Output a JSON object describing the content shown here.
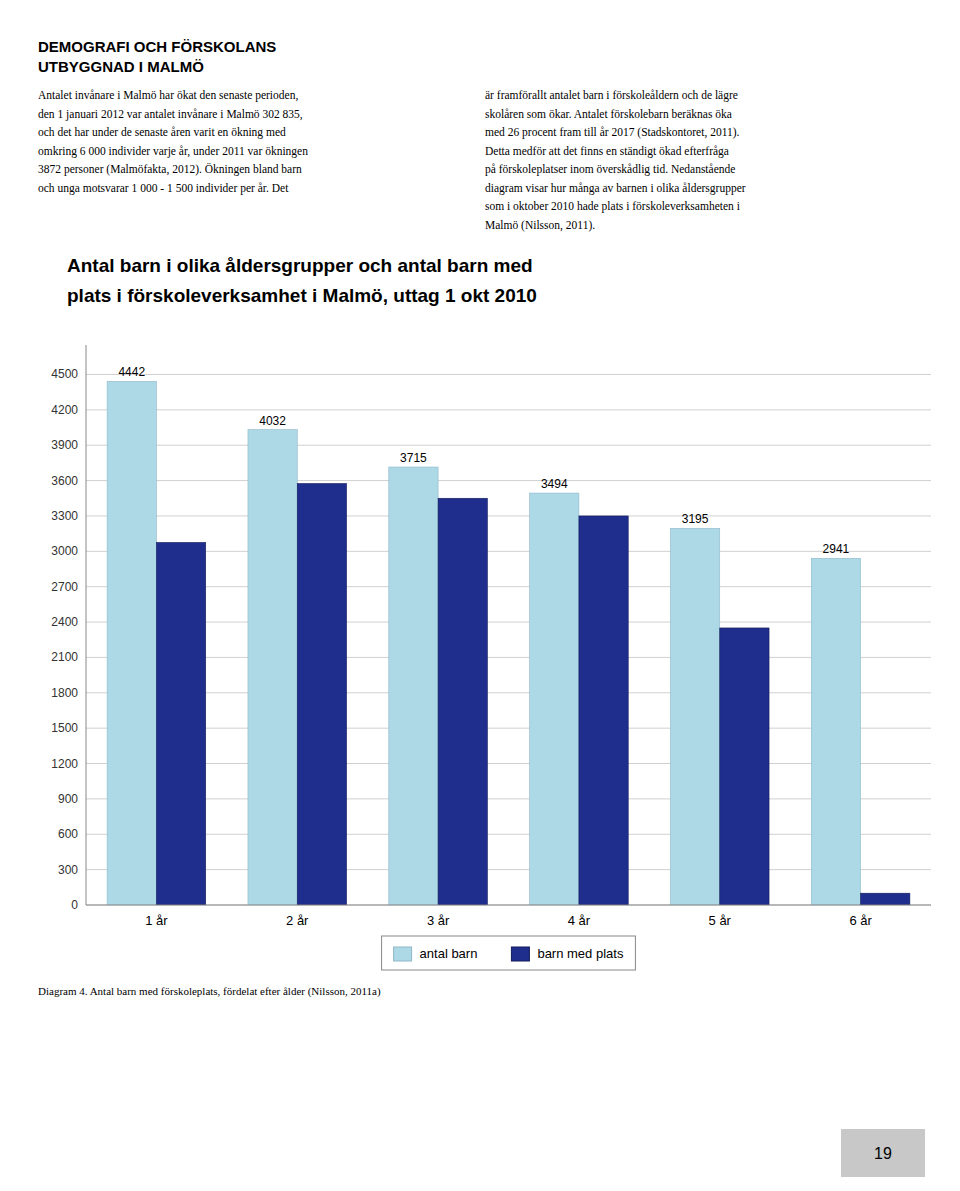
{
  "chart_data": {
    "type": "bar",
    "title": [
      "Antal barn i olika åldersgrupper och antal barn med",
      "plats i förskoleverksamhet i Malmö, uttag 1 okt 2010"
    ],
    "categories": [
      "1 år",
      "2 år",
      "3 år",
      "4 år",
      "5 år",
      "6 år"
    ],
    "series": [
      {
        "name": "antal barn",
        "color": "#ADD8E6",
        "values": [
          4442,
          4032,
          3715,
          3494,
          3195,
          2941
        ],
        "data_labels": true
      },
      {
        "name": "barn med plats",
        "color": "#1F2D8C",
        "values": [
          3075,
          3575,
          3450,
          3300,
          2350,
          100
        ]
      }
    ],
    "ylim": [
      0,
      4750
    ],
    "yticks": [
      0,
      300,
      600,
      900,
      1200,
      1500,
      1800,
      2100,
      2400,
      2700,
      3000,
      3300,
      3600,
      3900,
      4200,
      4500
    ],
    "grid": true,
    "legend": "bottom"
  },
  "page": {
    "header_title": [
      "DEMOGRAFI OCH FÖRSKOLANS",
      "UTBYGGNAD I MALMÖ"
    ],
    "left_column": [
      "Antalet invånare i Malmö har ökat den senaste perioden,",
      "den 1 januari 2012 var antalet invånare i Malmö 302 835,",
      "och det har under de senaste åren varit en ökning med",
      "omkring 6 000 individer varje år, under 2011 var ökningen",
      "3872 personer (Malmöfakta, 2012). Ökningen bland barn",
      "och unga motsvarar 1 000 - 1 500 individer per år. Det"
    ],
    "right_column": [
      "är framförallt antalet barn i förskoleåldern och de lägre",
      "skolåren som ökar. Antalet förskolebarn beräknas öka",
      "med 26 procent fram till år 2017 (Stadskontoret, 2011).",
      "Detta medför att det finns en ständigt ökad efterfråga",
      "på förskoleplatser inom överskådlig tid. Nedanstående",
      "diagram visar hur många av barnen i olika åldersgrupper",
      "som i oktober 2010 hade plats i förskoleverksamheten i",
      "Malmö (Nilsson, 2011)."
    ],
    "caption": "Diagram 4. Antal barn med förskoleplats, fördelat efter ålder (Nilsson, 2011a)",
    "page_number": "19"
  }
}
